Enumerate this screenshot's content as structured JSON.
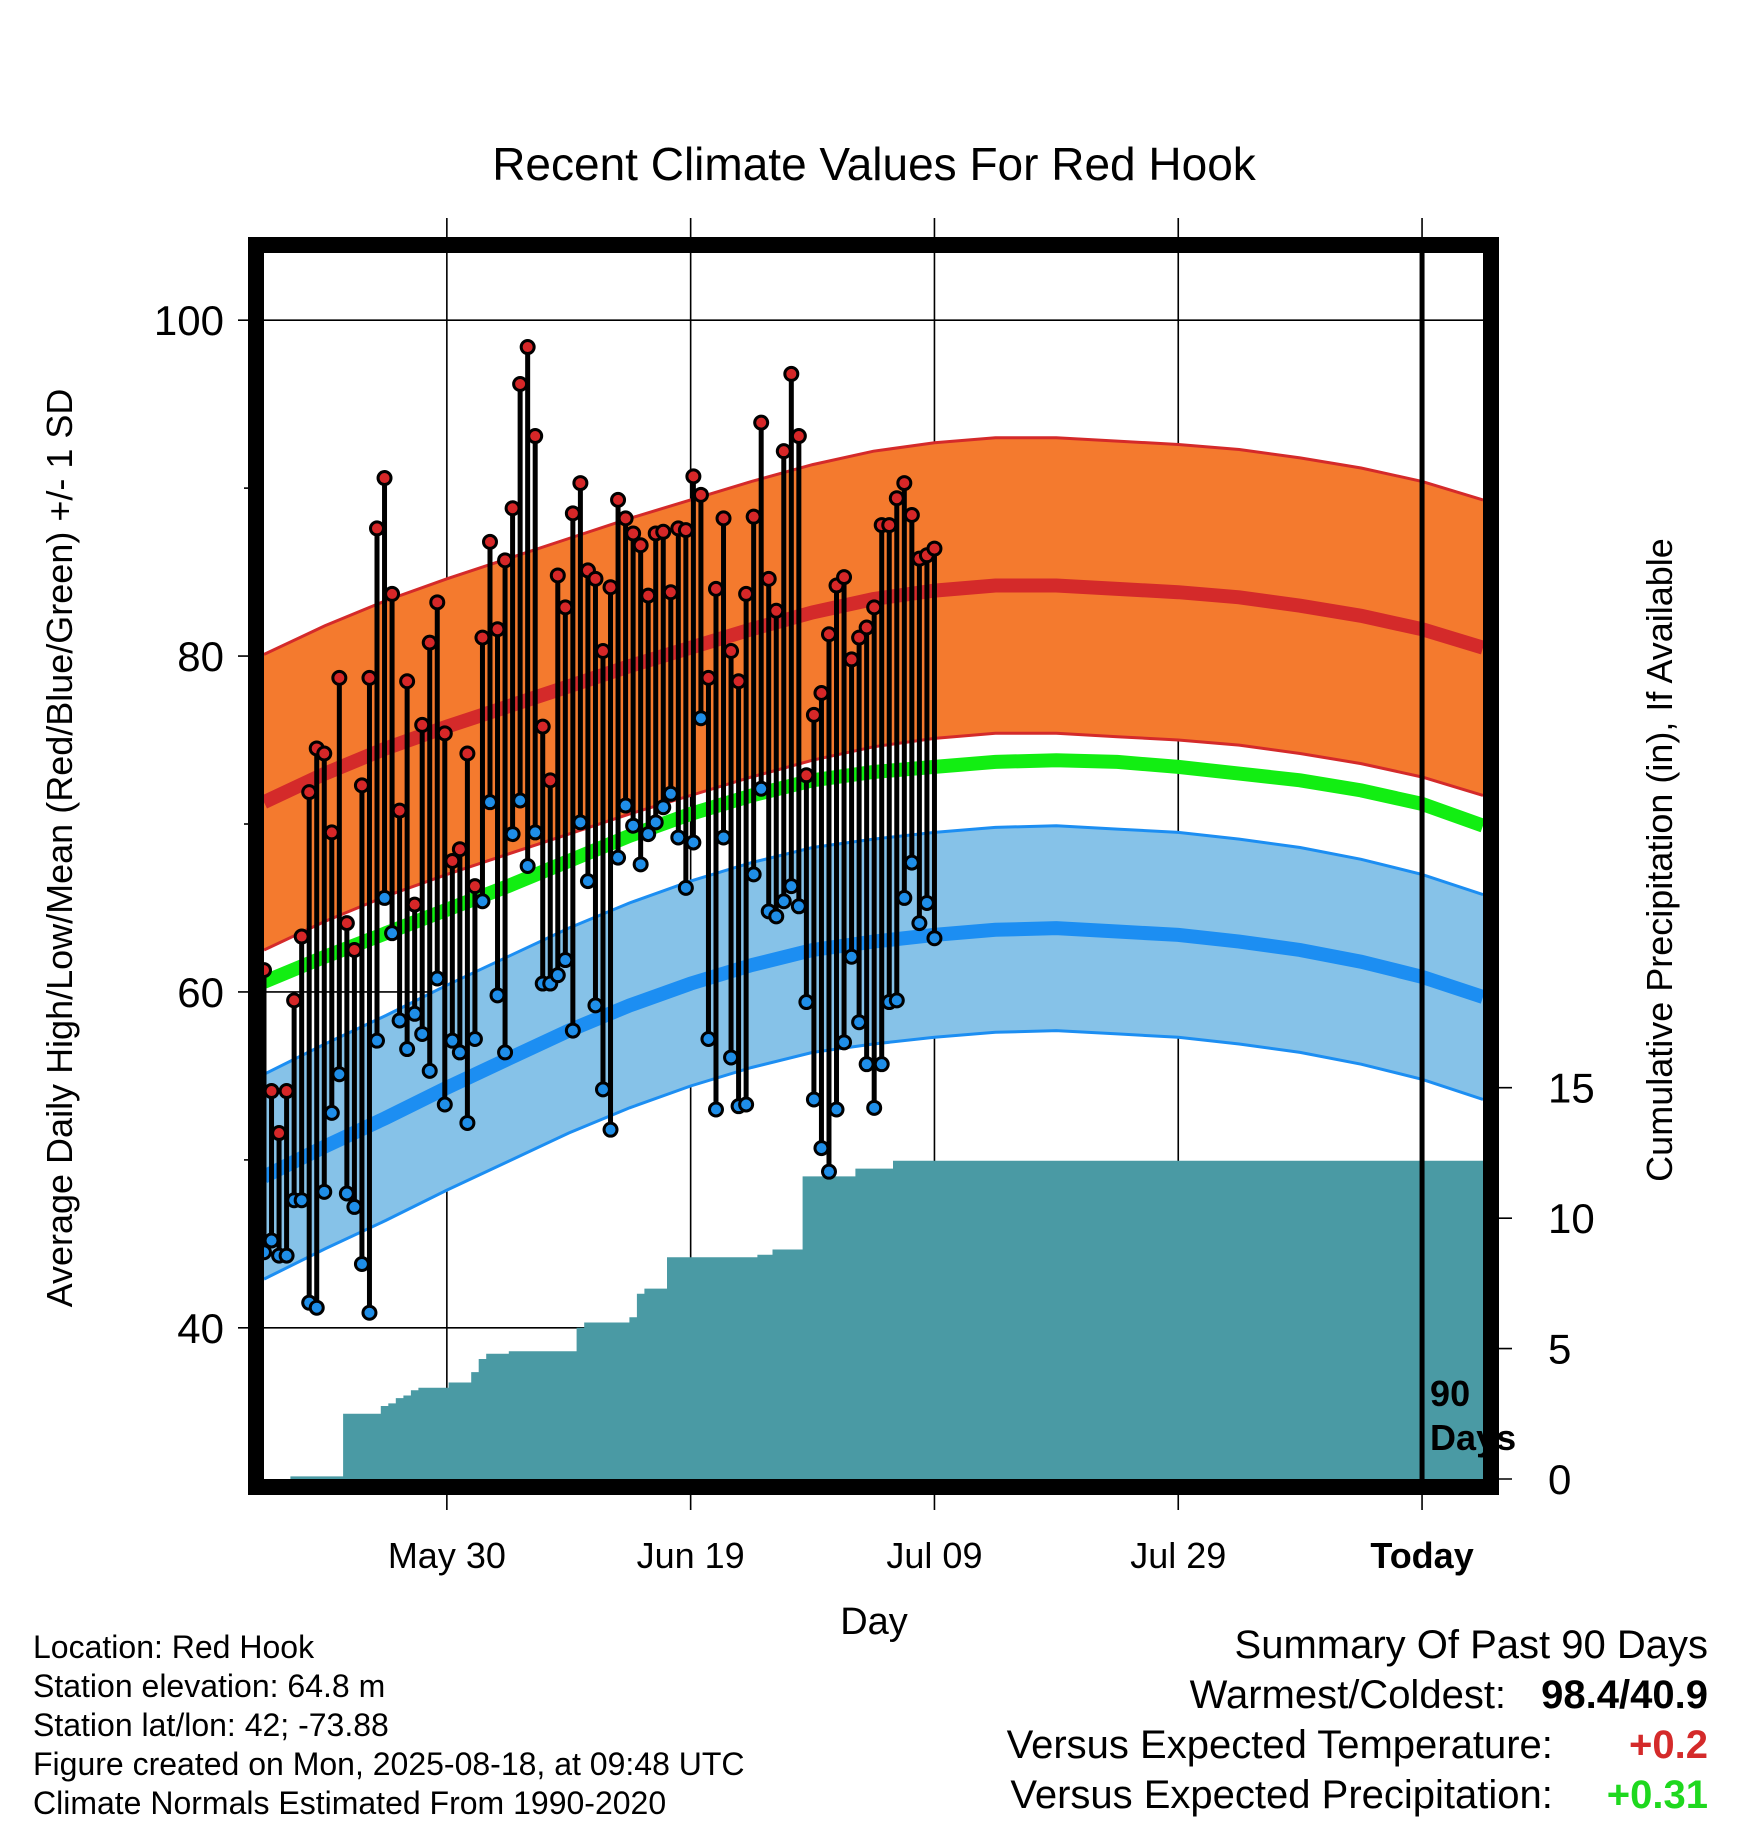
{
  "chart_data": {
    "type": "line",
    "title": "Recent Climate Values For Red Hook",
    "xlabel": "Day",
    "ylabel": "Average Daily High/Low/Mean (Red/Blue/Green) +/- 1 SD",
    "y2label": "Cumulative Precipitation (in), If Available",
    "ylim": [
      31,
      104
    ],
    "y2lim": [
      0,
      47
    ],
    "yticks": [
      40,
      60,
      80,
      100
    ],
    "yticks_labels": [
      "40",
      "60",
      "80",
      "100"
    ],
    "y2ticks": [
      0,
      5,
      10,
      15
    ],
    "y2ticks_labels": [
      "0",
      "5",
      "10",
      "15"
    ],
    "xlim": [
      -11,
      9
    ],
    "xticks": [
      -8,
      -4,
      0,
      4,
      8
    ],
    "xtick_labels": [
      "May 30",
      "Jun 19",
      "Jul 09",
      "Jul 29",
      "Today"
    ],
    "grid": true,
    "today_label": "90\nDays",
    "daily_high": [
      61.3,
      54.1,
      51.6,
      54.1,
      59.5,
      63.3,
      71.9,
      74.5,
      74.2,
      69.5,
      78.7,
      64.1,
      62.5,
      72.3,
      78.7,
      87.6,
      90.6,
      83.7,
      70.8,
      78.5,
      65.2,
      75.9,
      80.8,
      83.2,
      75.4,
      67.8,
      68.5,
      74.2,
      66.3,
      81.1,
      86.8,
      81.6,
      85.7,
      88.8,
      96.2,
      98.4,
      93.1,
      75.8,
      72.6,
      84.8,
      82.9,
      88.5,
      90.3,
      85.1,
      84.6,
      80.3,
      84.1,
      89.3,
      88.2,
      87.3,
      86.6,
      83.6,
      87.3,
      87.4,
      83.8,
      87.6,
      87.5,
      90.7,
      89.6,
      78.7,
      84.0,
      88.2,
      80.3,
      78.5,
      83.7,
      88.3,
      93.9,
      84.6,
      82.7,
      92.2,
      96.8,
      93.1,
      72.9,
      76.5,
      77.8,
      81.3,
      84.2,
      84.7,
      79.8,
      81.1,
      81.7,
      82.9,
      87.8,
      87.8,
      89.4,
      90.3,
      88.4,
      85.8,
      86.0,
      86.4
    ],
    "daily_low": [
      44.5,
      45.2,
      44.3,
      44.3,
      47.6,
      47.6,
      41.5,
      41.2,
      48.1,
      52.8,
      55.1,
      48.0,
      47.2,
      43.8,
      40.9,
      57.1,
      65.6,
      63.5,
      58.3,
      56.6,
      58.7,
      57.5,
      55.3,
      60.8,
      53.3,
      57.1,
      56.4,
      52.2,
      57.2,
      65.4,
      71.3,
      59.8,
      56.4,
      69.4,
      71.4,
      67.5,
      69.5,
      60.5,
      60.5,
      61.0,
      61.9,
      57.7,
      70.1,
      66.6,
      59.2,
      54.2,
      51.8,
      68.0,
      71.1,
      69.9,
      67.6,
      69.4,
      70.1,
      71.0,
      71.8,
      69.2,
      66.2,
      68.9,
      76.3,
      57.2,
      53.0,
      69.2,
      56.1,
      53.2,
      53.3,
      67.0,
      72.1,
      64.8,
      64.5,
      65.4,
      66.3,
      65.1,
      59.4,
      53.6,
      50.7,
      49.3,
      53.0,
      57.0,
      62.1,
      58.2,
      55.7,
      53.1,
      55.7,
      59.4,
      59.5,
      65.6,
      67.7,
      64.1,
      65.3,
      63.2
    ],
    "normal_x": [
      -11,
      -10,
      -9,
      -8,
      -7,
      -6,
      -5,
      -4,
      -3,
      -2,
      -1,
      0,
      1,
      2,
      3,
      4,
      5,
      6,
      7,
      8,
      9
    ],
    "normal_high": [
      71.3,
      73.0,
      74.5,
      75.8,
      77.0,
      78.2,
      79.4,
      80.5,
      81.6,
      82.6,
      83.4,
      83.9,
      84.2,
      84.2,
      84.0,
      83.8,
      83.5,
      83.0,
      82.4,
      81.6,
      80.5
    ],
    "normal_high_sd": 8.8,
    "normal_low": [
      49.0,
      50.8,
      52.5,
      54.3,
      56.0,
      57.7,
      59.2,
      60.5,
      61.6,
      62.5,
      63.0,
      63.4,
      63.7,
      63.8,
      63.6,
      63.4,
      63.0,
      62.5,
      61.8,
      60.9,
      59.7
    ],
    "normal_low_sd": 6.1,
    "normal_mean": [
      60.6,
      62.1,
      63.5,
      64.9,
      66.3,
      67.8,
      69.3,
      70.6,
      71.7,
      72.6,
      73.1,
      73.4,
      73.7,
      73.8,
      73.7,
      73.4,
      73.0,
      72.6,
      72.0,
      71.2,
      69.9
    ],
    "cumulative_precip": [
      0.0,
      0.0,
      0.0,
      0.0,
      0.1,
      0.1,
      0.1,
      0.1,
      0.1,
      0.1,
      0.1,
      2.5,
      2.5,
      2.5,
      2.5,
      2.5,
      2.8,
      2.9,
      3.1,
      3.2,
      3.4,
      3.5,
      3.5,
      3.5,
      3.5,
      3.7,
      3.7,
      3.7,
      4.1,
      4.6,
      4.8,
      4.8,
      4.8,
      4.9,
      4.9,
      4.9,
      4.9,
      4.9,
      4.9,
      4.9,
      4.9,
      4.9,
      5.8,
      6.0,
      6.0,
      6.0,
      6.0,
      6.0,
      6.0,
      6.2,
      7.1,
      7.3,
      7.3,
      7.3,
      8.5,
      8.5,
      8.5,
      8.5,
      8.5,
      8.5,
      8.5,
      8.5,
      8.5,
      8.5,
      8.5,
      8.5,
      8.6,
      8.6,
      8.8,
      8.8,
      8.8,
      8.8,
      11.6,
      11.6,
      11.6,
      11.6,
      11.6,
      11.6,
      11.6,
      11.9,
      11.9,
      11.9,
      11.9,
      11.9,
      12.2,
      12.2,
      12.2,
      12.2,
      12.2,
      12.2
    ],
    "series": [
      {
        "name": "Red",
        "color": "#d62728"
      },
      {
        "name": "Blue",
        "color": "#1f8ee8"
      },
      {
        "name": "Green",
        "color": "#1ee81e"
      }
    ],
    "colors": {
      "high_band": "#f47a2e",
      "high_line": "#d42a2a",
      "low_band": "#86c2e8",
      "low_line": "#1c8ef2",
      "mean_line": "#12ee12",
      "precip_fill": "#4a9aa4",
      "today_line": "#000000"
    }
  },
  "info": {
    "location": "Location: Red Hook",
    "elevation": "Station elevation: 64.8 m",
    "latlon": "Station lat/lon: 42; -73.88",
    "created": "Figure created on Mon, 2025-08-18, at 09:48 UTC",
    "normals": "Climate Normals Estimated From 1990-2020"
  },
  "summary": {
    "title": "Summary Of Past 90 Days",
    "warm_cold_label": "Warmest/Coldest:",
    "warm_cold_value": "98.4/40.9",
    "temp_label": "Versus Expected Temperature:",
    "temp_value": "+0.2",
    "temp_color": "#d42a2a",
    "precip_label": "Versus Expected Precipitation:",
    "precip_value": "+0.31",
    "precip_color": "#1ed81e"
  }
}
